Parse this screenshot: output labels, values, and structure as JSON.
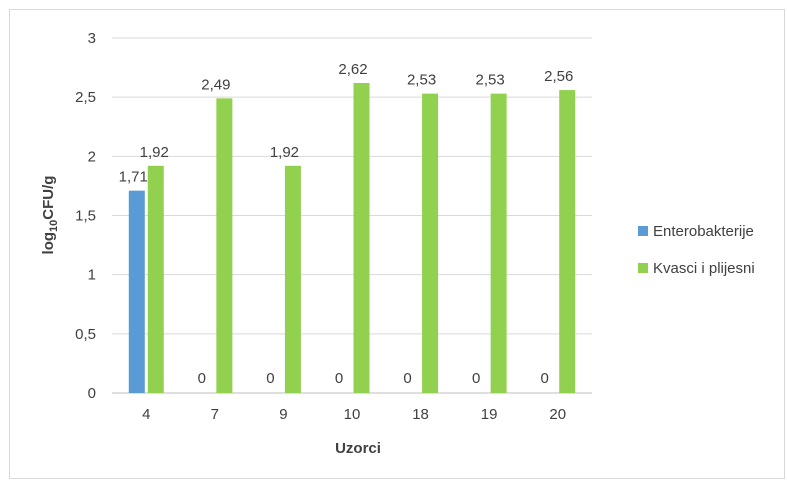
{
  "chart_data": {
    "type": "bar",
    "xlabel": "Uzorci",
    "ylabel": {
      "main": "log",
      "sub": "10",
      "rest": "CFU/g"
    },
    "categories": [
      "4",
      "7",
      "9",
      "10",
      "18",
      "19",
      "20"
    ],
    "series": [
      {
        "name": "Enterobakterije",
        "color": "#5b9bd5",
        "values": [
          1.71,
          0,
          0,
          0,
          0,
          0,
          0
        ],
        "labels": [
          "1,71",
          "0",
          "0",
          "0",
          "0",
          "0",
          "0"
        ]
      },
      {
        "name": "Kvasci i plijesni",
        "color": "#92d050",
        "values": [
          1.92,
          2.49,
          1.92,
          2.62,
          2.53,
          2.53,
          2.56
        ],
        "labels": [
          "1,92",
          "2,49",
          "1,92",
          "2,62",
          "2,53",
          "2,53",
          "2,56"
        ]
      }
    ],
    "ylim": [
      0,
      3
    ],
    "yticks": [
      0,
      0.5,
      1,
      1.5,
      2,
      2.5,
      3
    ],
    "ytick_labels": [
      "0",
      "0,5",
      "1",
      "1,5",
      "2",
      "2,5",
      "3"
    ],
    "grid": true,
    "legend_position": "right"
  }
}
